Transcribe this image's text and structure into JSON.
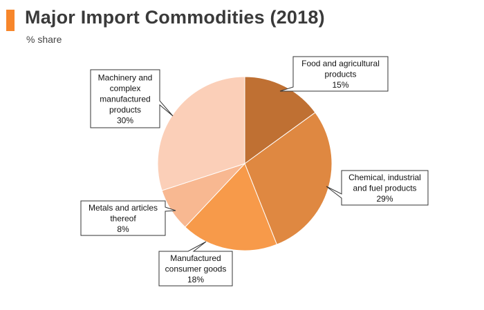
{
  "header": {
    "title": "Major Import Commodities (2018)",
    "subtitle": "% share",
    "accent_color": "#f7862b"
  },
  "chart_data": {
    "type": "pie",
    "title": "Major Import Commodities (2018)",
    "subtitle": "% share",
    "unit": "%",
    "start_angle": "12 o'clock, clockwise",
    "slices": [
      {
        "label": "Food and agricultural products",
        "label_lines": [
          "Food and agricultural",
          "products"
        ],
        "value": 15,
        "value_text": "15%",
        "color": "#bf7033"
      },
      {
        "label": "Chemical, industrial and fuel products",
        "label_lines": [
          "Chemical, industrial",
          "and fuel products"
        ],
        "value": 29,
        "value_text": "29%",
        "color": "#df8841"
      },
      {
        "label": "Manufactured consumer goods",
        "label_lines": [
          "Manufactured",
          "consumer goods"
        ],
        "value": 18,
        "value_text": "18%",
        "color": "#f79a4a"
      },
      {
        "label": "Metals and articles thereof",
        "label_lines": [
          "Metals and articles",
          "thereof"
        ],
        "value": 8,
        "value_text": "8%",
        "color": "#f8b891"
      },
      {
        "label": "Machinery and complex manufactured products",
        "label_lines": [
          "Machinery and",
          "complex",
          "manufactured",
          "products"
        ],
        "value": 30,
        "value_text": "30%",
        "color": "#fbcfb8"
      }
    ]
  }
}
